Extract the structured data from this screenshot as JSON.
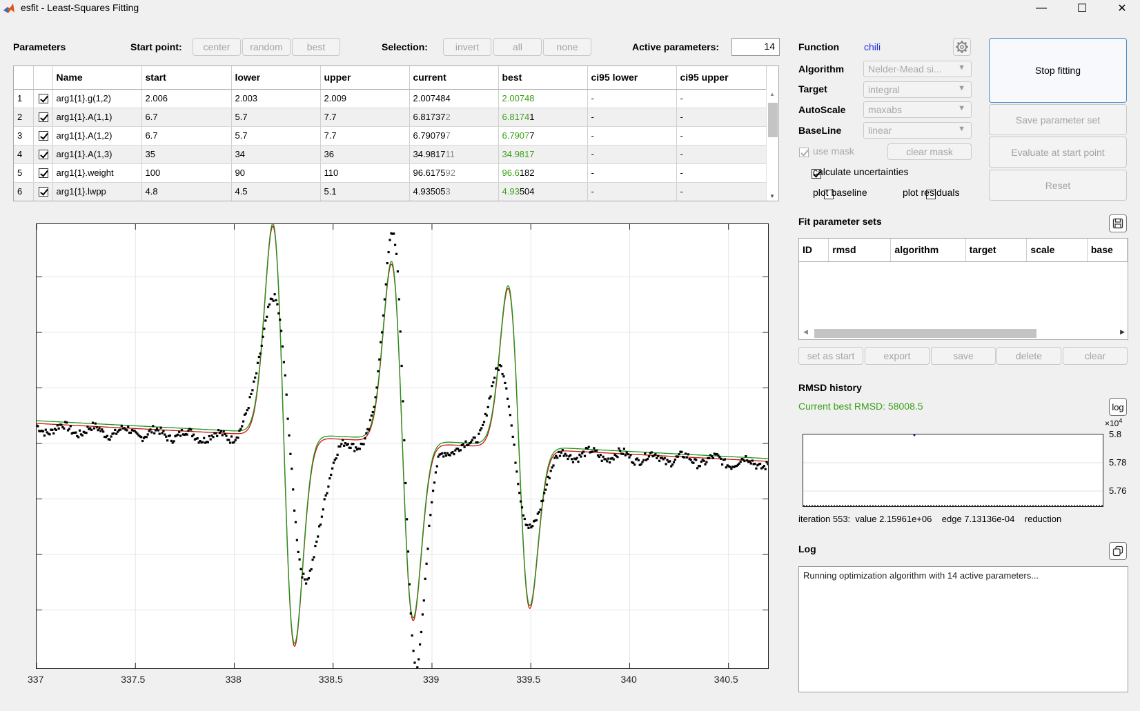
{
  "window": {
    "title": "esfit - Least-Squares Fitting",
    "minimize_glyph": "—",
    "maximize_glyph": "☐",
    "close_glyph": "✕"
  },
  "params_bar": {
    "title": "Parameters",
    "start_point_label": "Start point:",
    "start_buttons": [
      "center",
      "random",
      "best"
    ],
    "selection_label": "Selection:",
    "selection_buttons": [
      "invert",
      "all",
      "none"
    ],
    "active_label": "Active parameters:",
    "active_value": "14"
  },
  "param_table": {
    "columns": [
      "",
      "",
      "Name",
      "start",
      "lower",
      "upper",
      "current",
      "best",
      "ci95 lower",
      "ci95 upper"
    ],
    "rows": [
      {
        "idx": "1",
        "name": "arg1{1}.g(1,2)",
        "start": "2.006",
        "lower": "2.003",
        "upper": "2.009",
        "current_main": "2.007484",
        "current_tail": "",
        "best_green": "2.00748",
        "best_rest": "",
        "ci_lower": "-",
        "ci_upper": "-"
      },
      {
        "idx": "2",
        "name": "arg1{1}.A(1,1)",
        "start": "6.7",
        "lower": "5.7",
        "upper": "7.7",
        "current_main": "6.81737",
        "current_tail": "2",
        "best_green": "6.8174",
        "best_rest": "1",
        "ci_lower": "-",
        "ci_upper": "-"
      },
      {
        "idx": "3",
        "name": "arg1{1}.A(1,2)",
        "start": "6.7",
        "lower": "5.7",
        "upper": "7.7",
        "current_main": "6.79079",
        "current_tail": "7",
        "best_green": "6.7907",
        "best_rest": "7",
        "ci_lower": "-",
        "ci_upper": "-"
      },
      {
        "idx": "4",
        "name": "arg1{1}.A(1,3)",
        "start": "35",
        "lower": "34",
        "upper": "36",
        "current_main": "34.9817",
        "current_tail": "11",
        "best_green": "34.9817",
        "best_rest": "",
        "ci_lower": "-",
        "ci_upper": "-"
      },
      {
        "idx": "5",
        "name": "arg1{1}.weight",
        "start": "100",
        "lower": "90",
        "upper": "110",
        "current_main": "96.6175",
        "current_tail": "92",
        "best_green": "96.6",
        "best_rest": "182",
        "ci_lower": "-",
        "ci_upper": "-"
      },
      {
        "idx": "6",
        "name": "arg1{1}.lwpp",
        "start": "4.8",
        "lower": "4.5",
        "upper": "5.1",
        "current_main": "4.93505",
        "current_tail": "3",
        "best_green": "4.93",
        "best_rest": "504",
        "ci_lower": "-",
        "ci_upper": "-"
      }
    ]
  },
  "settings": {
    "function_label": "Function",
    "function_value": "chili",
    "algorithm_label": "Algorithm",
    "algorithm_value": "Nelder-Mead si...",
    "target_label": "Target",
    "target_value": "integral",
    "autoscale_label": "AutoScale",
    "autoscale_value": "maxabs",
    "baseline_label": "BaseLine",
    "baseline_value": "linear",
    "use_mask_label": "use mask",
    "clear_mask_label": "clear mask",
    "calc_unc_label": "calculate uncertainties",
    "plot_baseline_label": "plot baseline",
    "plot_residuals_label": "plot residuals"
  },
  "actions": {
    "stop": "Stop fitting",
    "save_set": "Save parameter set",
    "evaluate": "Evaluate at start point",
    "reset": "Reset"
  },
  "fit_sets": {
    "title": "Fit parameter sets",
    "columns": [
      "ID",
      "rmsd",
      "algorithm",
      "target",
      "scale",
      "base"
    ],
    "buttons": [
      "set as start",
      "export",
      "save",
      "delete",
      "clear"
    ]
  },
  "rmsd": {
    "title": "RMSD history",
    "current_best": "Current best RMSD: 58008.5",
    "log_button": "log",
    "exponent_base": "×10",
    "exponent_power": "4",
    "yticks": [
      "5.8",
      "5.78",
      "5.76"
    ],
    "iteration_text": "iteration 553:  value 2.15961e+06    edge 7.13136e-04    reduction"
  },
  "log": {
    "title": "Log",
    "text": "Running optimization algorithm with 14 active parameters..."
  },
  "chart_data": {
    "type": "line",
    "xlim": [
      337,
      340.7
    ],
    "x_ticks": [
      "337",
      "337.5",
      "338",
      "338.5",
      "339",
      "339.5",
      "340",
      "340.5"
    ],
    "grid": true,
    "series": [
      {
        "color": "#cc1111"
      },
      {
        "color": "#1a9a1a"
      },
      {
        "color": "#000000"
      }
    ]
  },
  "colors": {
    "accent_blue": "#1f2fd8",
    "green_text": "#3aa017",
    "fit_red": "#cc1111",
    "fit_green": "#1a9a1a"
  }
}
